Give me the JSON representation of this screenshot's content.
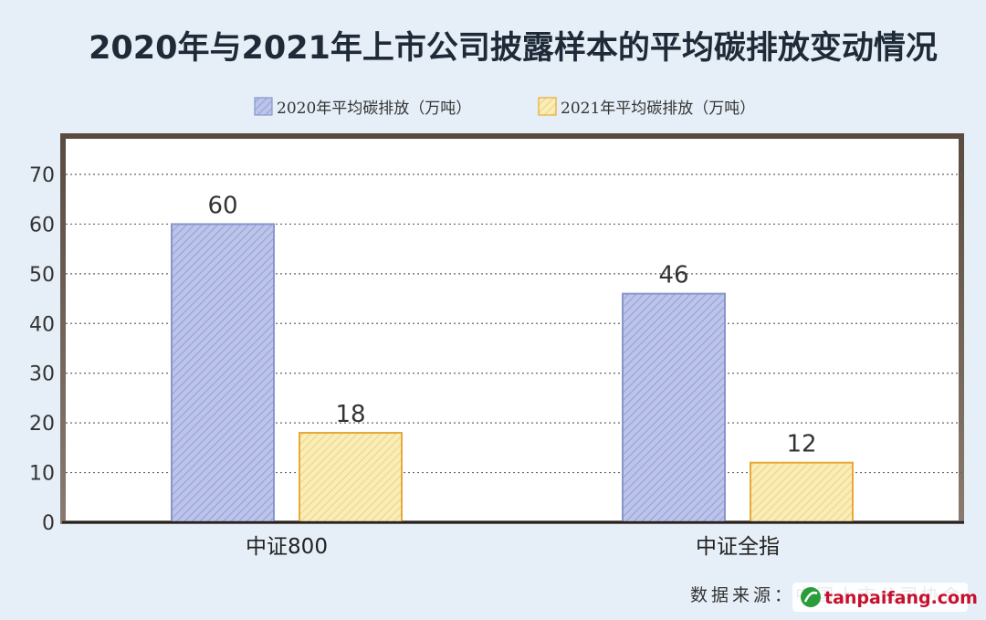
{
  "chart_data": {
    "type": "bar",
    "title": "2020年与2021年上市公司披露样本的平均碳排放变动情况",
    "categories": [
      "中证800",
      "中证全指"
    ],
    "series": [
      {
        "name": "2020年平均碳排放（万吨）",
        "values": [
          60,
          46
        ],
        "color": "#b5bee6",
        "stroke": "#8896cc"
      },
      {
        "name": "2021年平均碳排放（万吨）",
        "values": [
          18,
          12
        ],
        "color": "#f7e7a6",
        "stroke": "#e8a83a"
      }
    ],
    "ylim": [
      0,
      70
    ],
    "yticks": [
      0,
      10,
      20,
      30,
      40,
      50,
      60,
      70
    ],
    "xlabel": "",
    "ylabel": "",
    "grid": true,
    "legend_position": "top",
    "source": "数据来源：中国上市公司协会"
  },
  "watermark": {
    "icon": "tanpaifang-logo-icon",
    "text": "tanpaifang.com"
  }
}
